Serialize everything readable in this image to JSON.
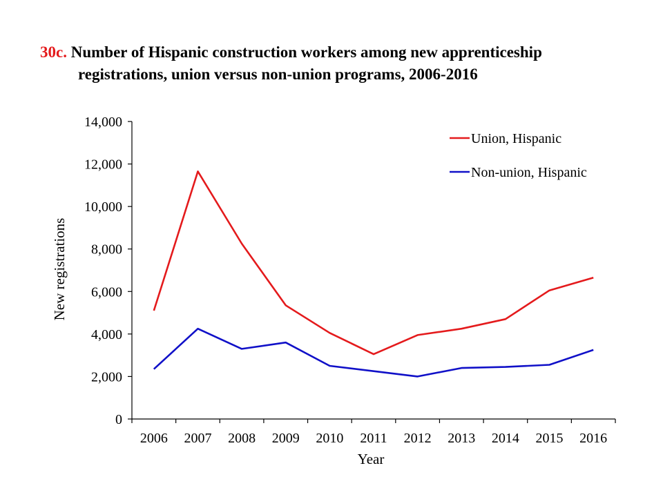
{
  "title": {
    "number": "30c.",
    "line1": "Number of Hispanic construction workers among new apprenticeship",
    "line2": "registrations, union versus non-union programs, 2006-2016"
  },
  "chart_data": {
    "type": "line",
    "x": [
      "2006",
      "2007",
      "2008",
      "2009",
      "2010",
      "2011",
      "2012",
      "2013",
      "2014",
      "2015",
      "2016"
    ],
    "series": [
      {
        "name": "Union, Hispanic",
        "color": "#e41a1c",
        "values": [
          5100,
          11650,
          8250,
          5350,
          4050,
          3050,
          3950,
          4250,
          4700,
          6050,
          6650
        ]
      },
      {
        "name": "Non-union, Hispanic",
        "color": "#1010c8",
        "values": [
          2350,
          4250,
          3300,
          3600,
          2500,
          2250,
          2000,
          2400,
          2450,
          2550,
          3250
        ]
      }
    ],
    "xlabel": "Year",
    "ylabel": "New registrations",
    "ylim": [
      0,
      14000
    ],
    "yticks": [
      0,
      2000,
      4000,
      6000,
      8000,
      10000,
      12000,
      14000
    ],
    "yticklabels": [
      "0",
      "2,000",
      "4,000",
      "6,000",
      "8,000",
      "10,000",
      "12,000",
      "14,000"
    ],
    "legend": "top-right",
    "grid": false
  }
}
